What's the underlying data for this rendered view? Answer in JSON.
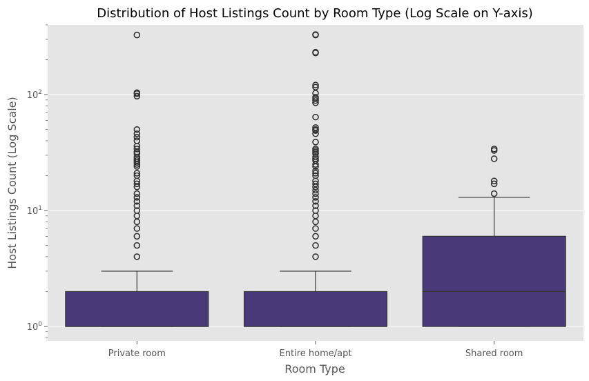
{
  "chart_data": {
    "type": "box",
    "title": "Distribution of Host Listings Count by Room Type (Log Scale on Y-axis)",
    "xlabel": "Room Type",
    "ylabel": "Host Listings Count (Log Scale)",
    "yscale": "log",
    "ylim": [
      0.75,
      400
    ],
    "y_ticks": [
      {
        "base": "10",
        "exp": "0",
        "value": 1
      },
      {
        "base": "10",
        "exp": "1",
        "value": 10
      },
      {
        "base": "10",
        "exp": "2",
        "value": 100
      }
    ],
    "grid": true,
    "box_color": "#483a78",
    "background": "#e5e5e5",
    "categories": [
      "Private room",
      "Entire home/apt",
      "Shared room"
    ],
    "boxes": [
      {
        "category": "Private room",
        "q1": 1,
        "median": 1,
        "q3": 2,
        "whisker_low": 1,
        "whisker_high": 3,
        "outliers": [
          4,
          5,
          6,
          7,
          8,
          9,
          10,
          11,
          12,
          13,
          14,
          16,
          17,
          18,
          20,
          21,
          24,
          25,
          26,
          27,
          28,
          29,
          31,
          32,
          34,
          36,
          40,
          43,
          46,
          50,
          97,
          102,
          104,
          327
        ]
      },
      {
        "category": "Entire home/apt",
        "q1": 1,
        "median": 1,
        "q3": 2,
        "whisker_low": 1,
        "whisker_high": 3,
        "outliers": [
          4,
          5,
          6,
          7,
          8,
          9,
          10,
          11,
          12,
          13,
          14,
          15,
          16,
          17,
          18,
          20,
          21,
          22,
          24,
          25,
          27,
          28,
          29,
          31,
          32,
          33,
          34,
          39,
          46,
          49,
          50,
          52,
          64,
          85,
          89,
          92,
          95,
          103,
          116,
          121,
          229,
          232,
          327,
          330
        ]
      },
      {
        "category": "Shared room",
        "q1": 1,
        "median": 2,
        "q3": 6,
        "whisker_low": 1,
        "whisker_high": 13,
        "outliers": [
          14,
          17,
          18,
          28,
          33,
          34
        ]
      }
    ]
  }
}
